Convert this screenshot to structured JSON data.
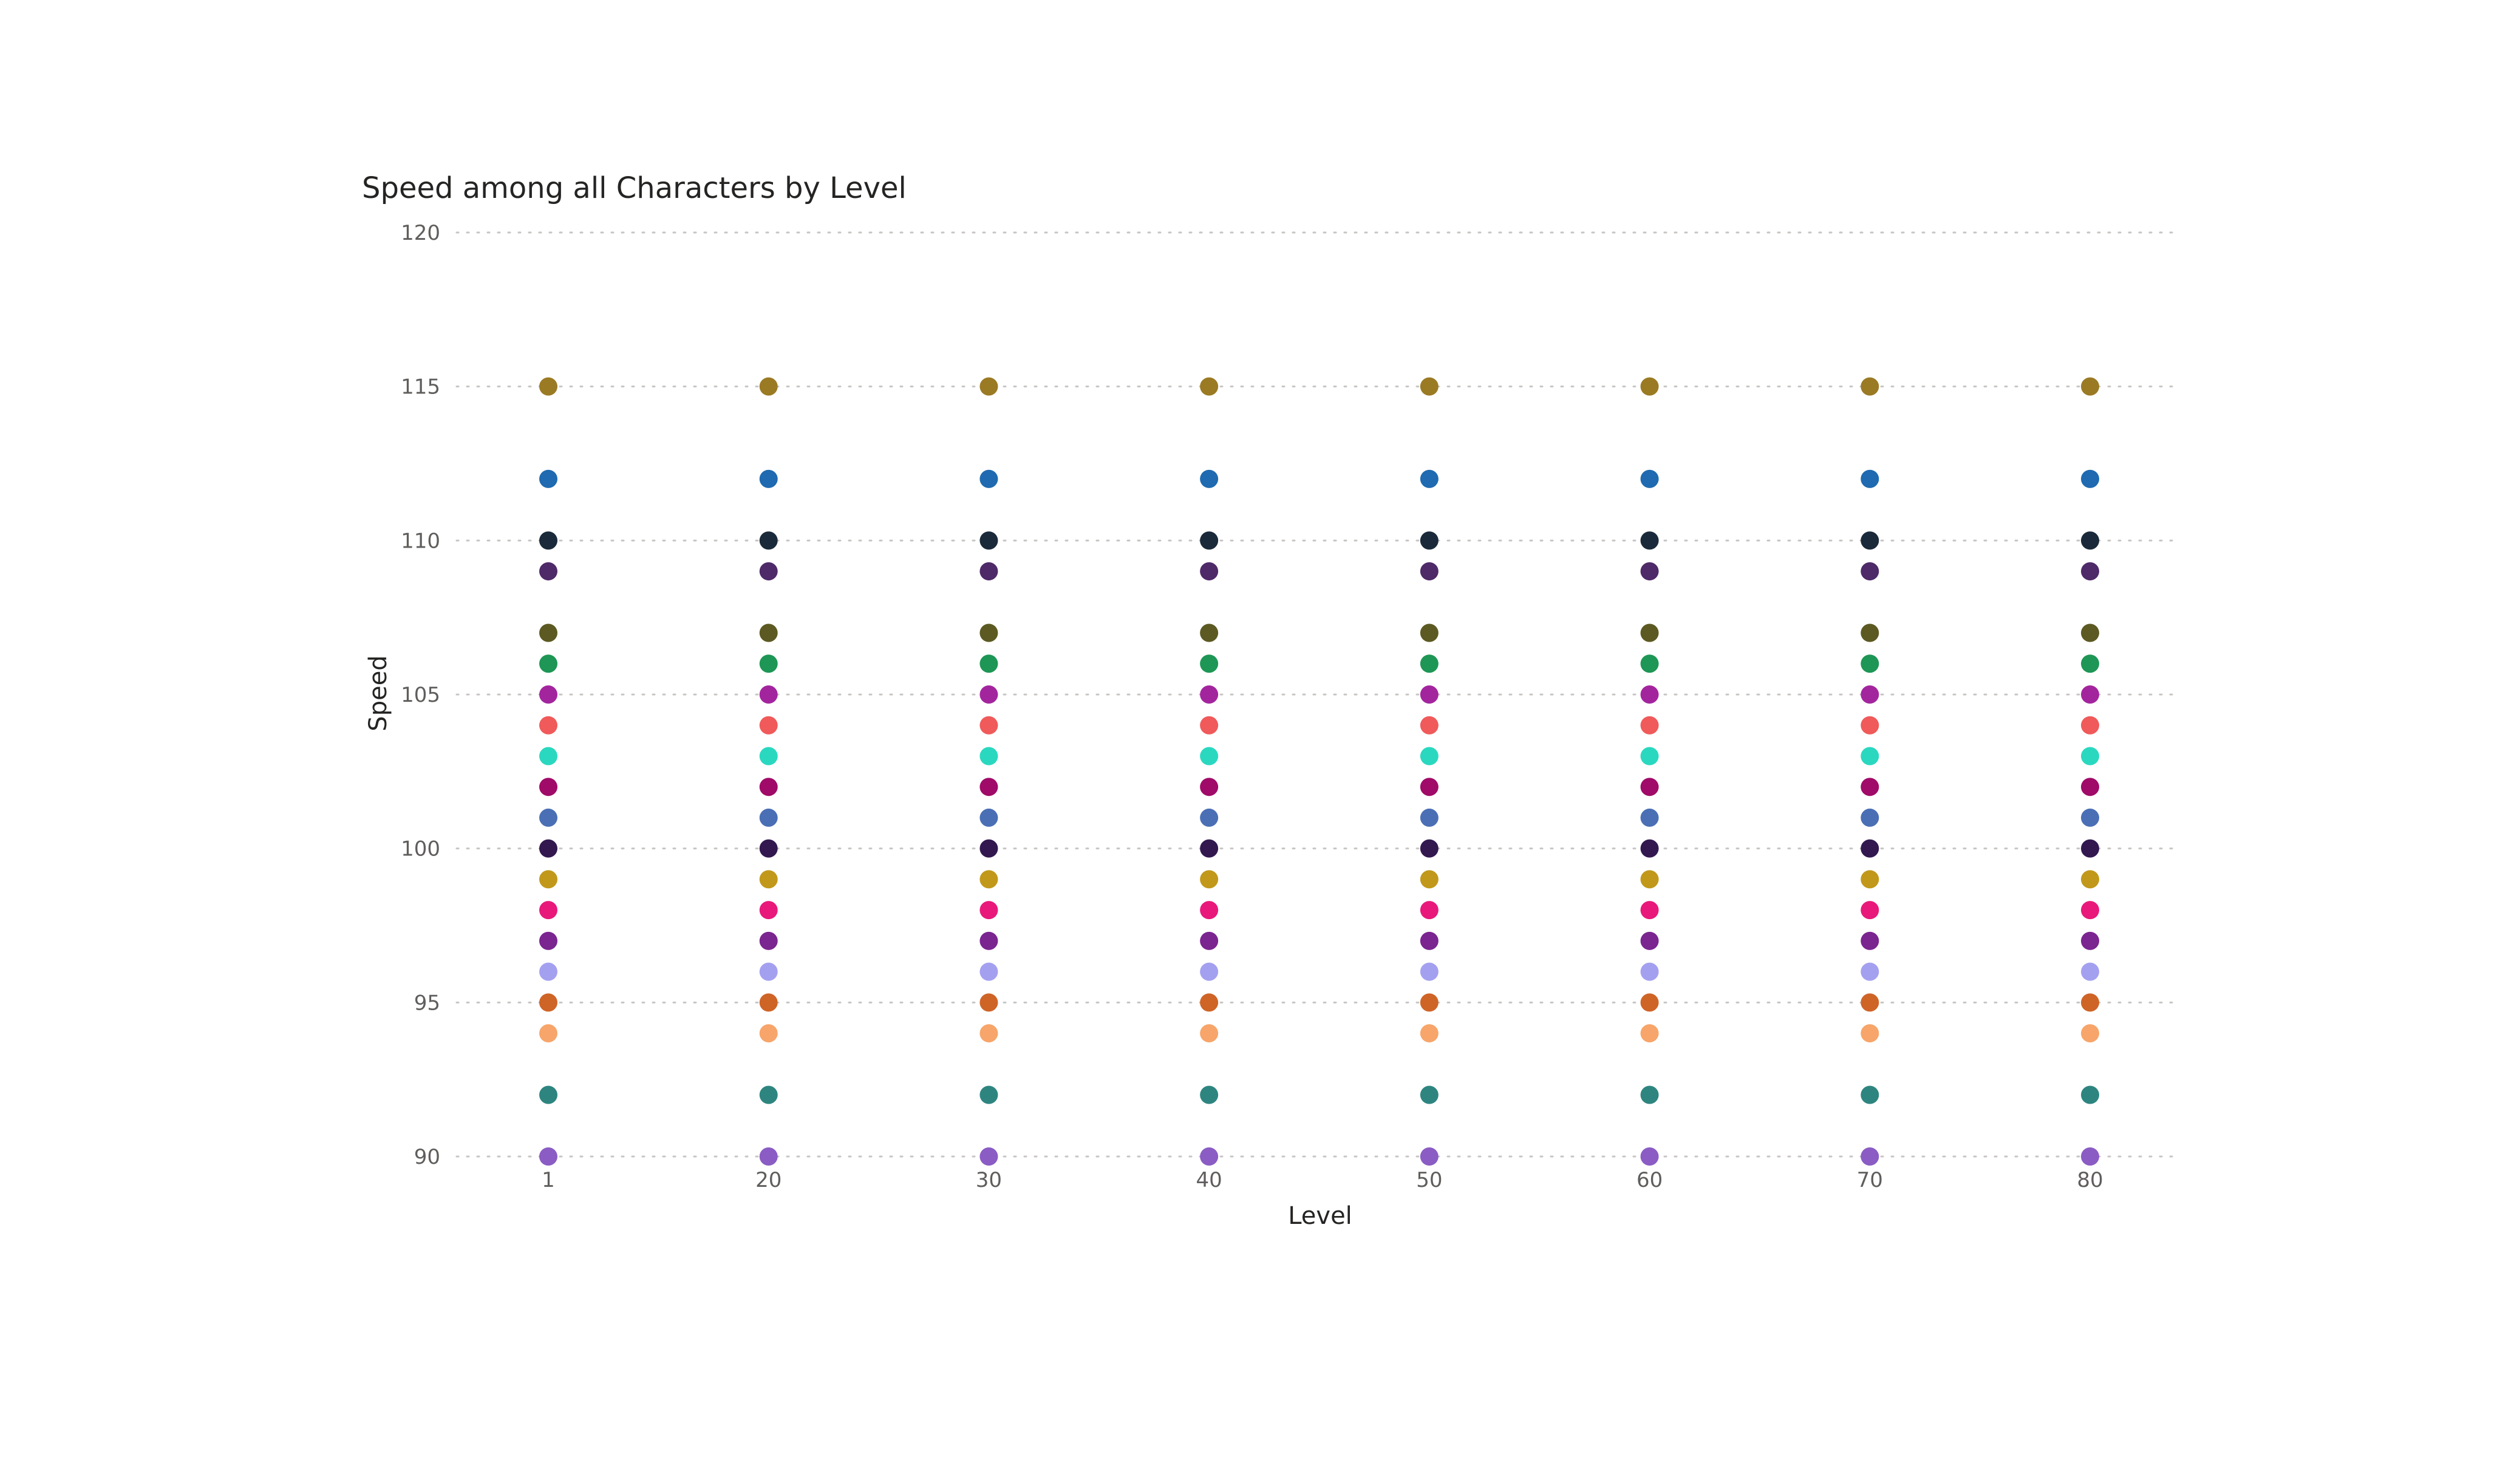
{
  "chart_data": {
    "type": "scatter",
    "title": "Speed among all Characters by Level",
    "xlabel": "Level",
    "ylabel": "Speed",
    "x_categories": [
      "1",
      "20",
      "30",
      "40",
      "50",
      "60",
      "70",
      "80"
    ],
    "yticks": [
      90,
      95,
      100,
      105,
      110,
      115,
      120
    ],
    "ylim": [
      90,
      120
    ],
    "grid": true,
    "legend": "none",
    "series": [
      {
        "color": "#9b7a24",
        "values": [
          115,
          115,
          115,
          115,
          115,
          115,
          115,
          115
        ]
      },
      {
        "color": "#1f6ab0",
        "values": [
          112,
          112,
          112,
          112,
          112,
          112,
          112,
          112
        ]
      },
      {
        "color": "#1b2a3a",
        "values": [
          110,
          110,
          110,
          110,
          110,
          110,
          110,
          110
        ]
      },
      {
        "color": "#4e2a68",
        "values": [
          109,
          109,
          109,
          109,
          109,
          109,
          109,
          109
        ]
      },
      {
        "color": "#5c5a22",
        "values": [
          107,
          107,
          107,
          107,
          107,
          107,
          107,
          107
        ]
      },
      {
        "color": "#1e9655",
        "values": [
          106,
          106,
          106,
          106,
          106,
          106,
          106,
          106
        ]
      },
      {
        "color": "#a3259e",
        "values": [
          105,
          105,
          105,
          105,
          105,
          105,
          105,
          105
        ]
      },
      {
        "color": "#f05a5a",
        "values": [
          104,
          104,
          104,
          104,
          104,
          104,
          104,
          104
        ]
      },
      {
        "color": "#2ad8c0",
        "values": [
          103,
          103,
          103,
          103,
          103,
          103,
          103,
          103
        ]
      },
      {
        "color": "#a00a68",
        "values": [
          102,
          102,
          102,
          102,
          102,
          102,
          102,
          102
        ]
      },
      {
        "color": "#4a6fb5",
        "values": [
          101,
          101,
          101,
          101,
          101,
          101,
          101,
          101
        ]
      },
      {
        "color": "#32184f",
        "values": [
          100,
          100,
          100,
          100,
          100,
          100,
          100,
          100
        ]
      },
      {
        "color": "#c1981a",
        "values": [
          99,
          99,
          99,
          99,
          99,
          99,
          99,
          99
        ]
      },
      {
        "color": "#e8197b",
        "values": [
          98,
          98,
          98,
          98,
          98,
          98,
          98,
          98
        ]
      },
      {
        "color": "#7a2590",
        "values": [
          97,
          97,
          97,
          97,
          97,
          97,
          97,
          97
        ]
      },
      {
        "color": "#a4a0f0",
        "values": [
          96,
          96,
          96,
          96,
          96,
          96,
          96,
          96
        ]
      },
      {
        "color": "#cf6427",
        "values": [
          95,
          95,
          95,
          95,
          95,
          95,
          95,
          95
        ]
      },
      {
        "color": "#f7a56a",
        "values": [
          94,
          94,
          94,
          94,
          94,
          94,
          94,
          94
        ]
      },
      {
        "color": "#2e8580",
        "values": [
          92,
          92,
          92,
          92,
          92,
          92,
          92,
          92
        ]
      },
      {
        "color": "#8a5cc4",
        "values": [
          90,
          90,
          90,
          90,
          90,
          90,
          90,
          90
        ]
      }
    ]
  }
}
